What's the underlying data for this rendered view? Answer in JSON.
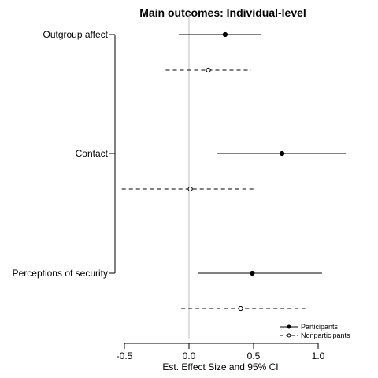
{
  "chart_data": {
    "type": "scatter",
    "title": "Main outcomes: Individual-level",
    "xlabel": "Est. Effect Size and 95% CI",
    "ylabel": "",
    "xlim": [
      -0.5,
      1.0
    ],
    "xticks": [
      -0.5,
      0.0,
      0.5,
      1.0
    ],
    "xtick_labels": [
      "-0.5",
      "0.0",
      "0.5",
      "1.0"
    ],
    "reference_line_x": 0,
    "categories": [
      "Outgroup affect",
      "Contact",
      "Perceptions of security"
    ],
    "series": [
      {
        "name": "Participants",
        "marker": "filled-circle",
        "line": "solid",
        "points": [
          {
            "category": "Outgroup affect",
            "estimate": 0.28,
            "ci_low": -0.08,
            "ci_high": 0.56
          },
          {
            "category": "Contact",
            "estimate": 0.72,
            "ci_low": 0.22,
            "ci_high": 1.22
          },
          {
            "category": "Perceptions of security",
            "estimate": 0.49,
            "ci_low": 0.07,
            "ci_high": 1.03
          }
        ]
      },
      {
        "name": "Nonparticipants",
        "marker": "open-circle",
        "line": "dashed",
        "points": [
          {
            "category": "Outgroup affect",
            "estimate": 0.15,
            "ci_low": -0.18,
            "ci_high": 0.48
          },
          {
            "category": "Contact",
            "estimate": 0.01,
            "ci_low": -0.52,
            "ci_high": 0.52
          },
          {
            "category": "Perceptions of security",
            "estimate": 0.4,
            "ci_low": -0.06,
            "ci_high": 0.9
          }
        ]
      }
    ],
    "legend_position": "bottom-right",
    "grid": false,
    "colors": {
      "line": "#000000",
      "reference": "#bebebe"
    }
  }
}
